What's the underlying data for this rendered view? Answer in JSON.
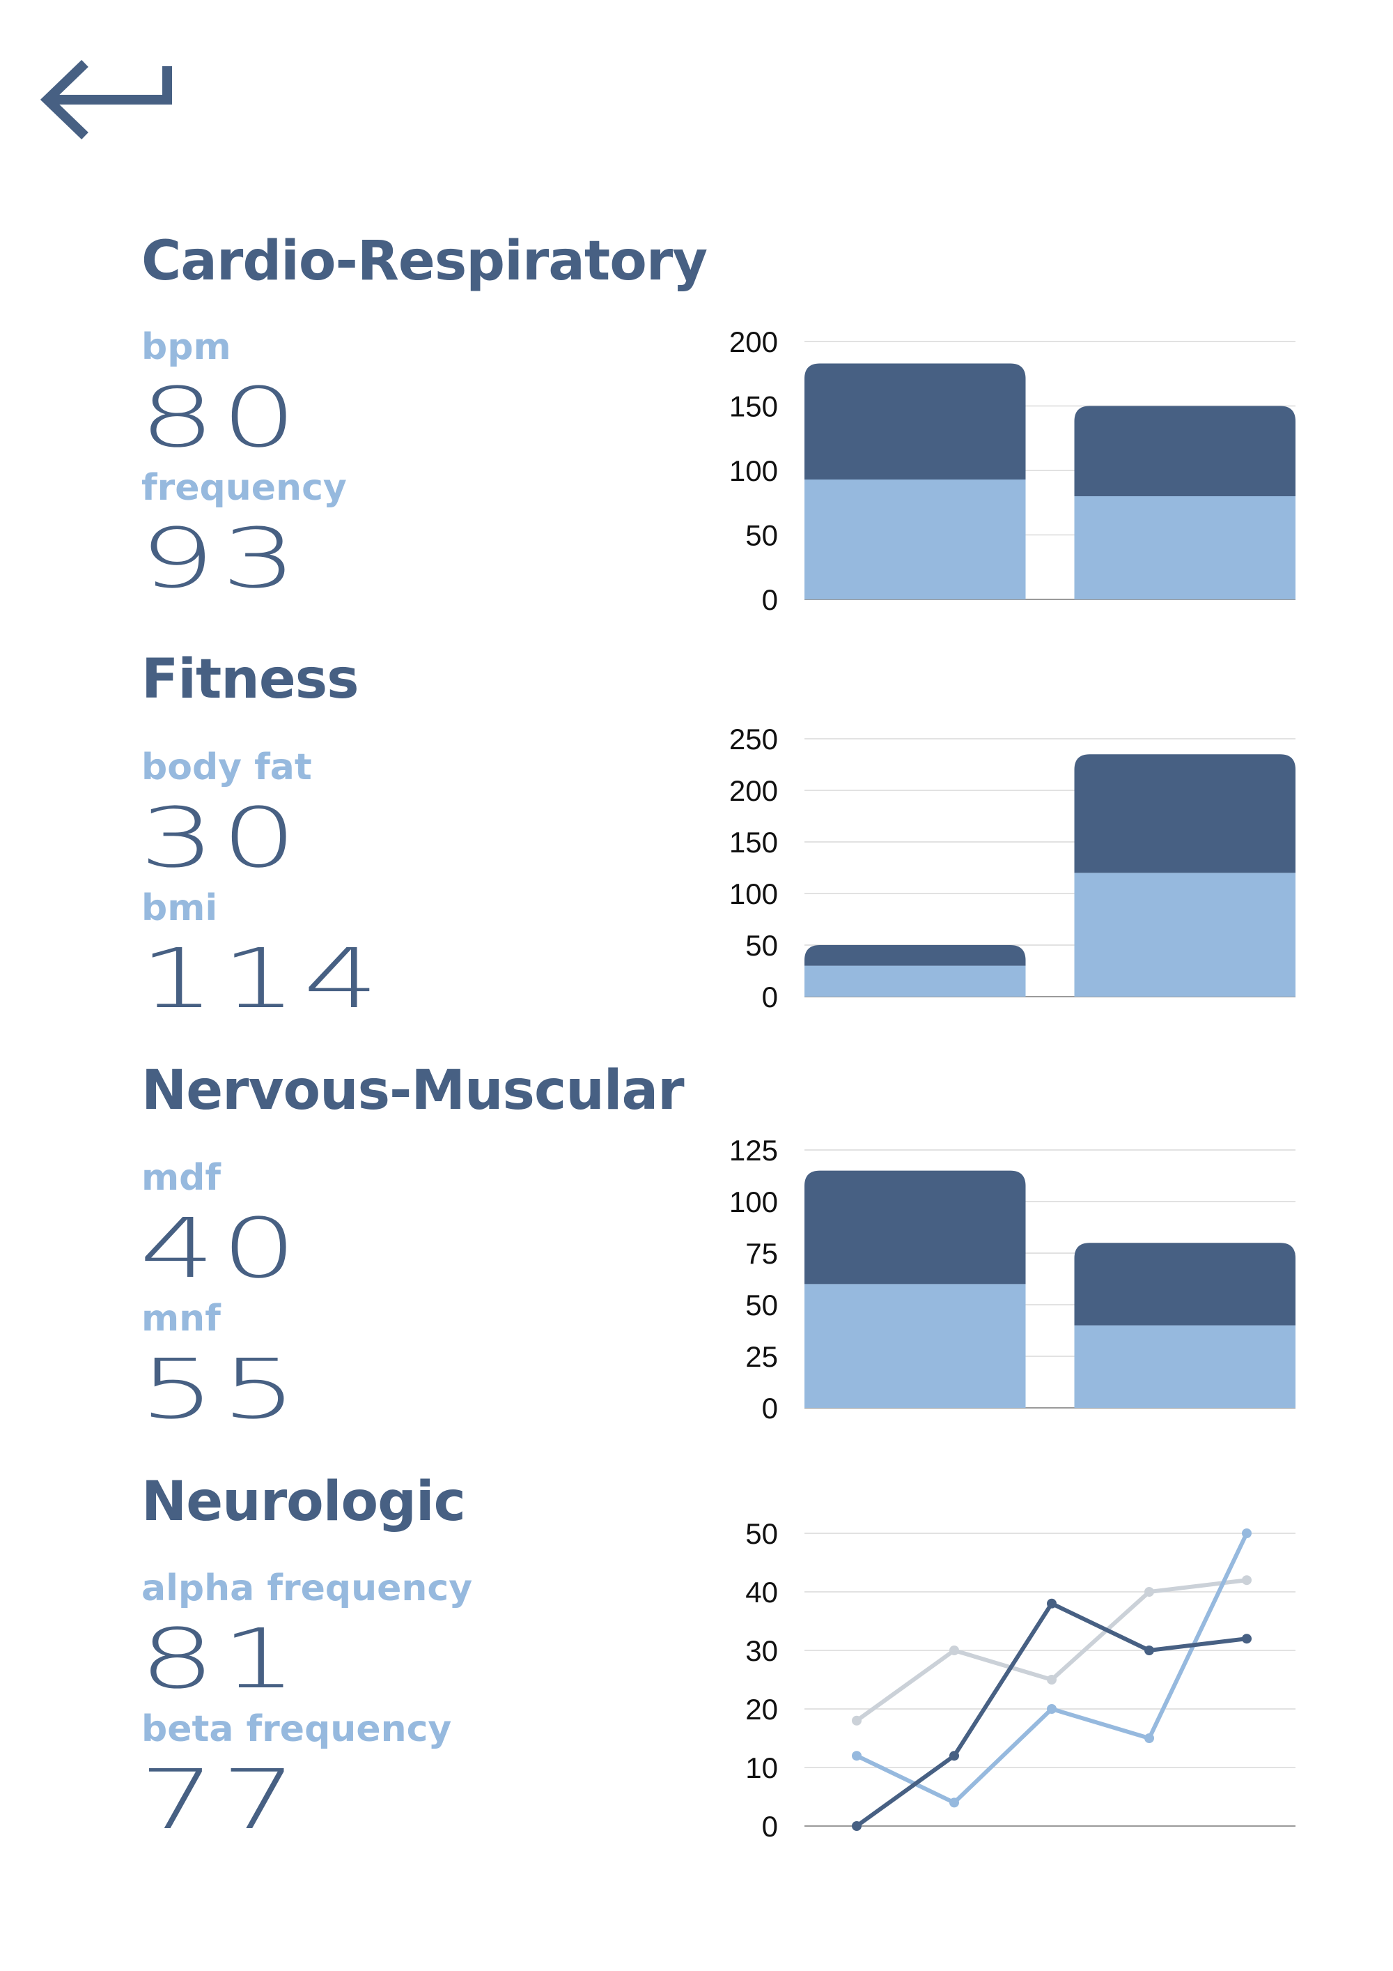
{
  "colors": {
    "dark": "#476083",
    "light": "#96b9de",
    "gray": "#cbd1d8",
    "grid": "#d9d9d9"
  },
  "nav": {
    "back_icon": "return-arrow-icon"
  },
  "sections": [
    {
      "id": "cardio",
      "title": "Cardio-Respiratory",
      "metrics": [
        {
          "label": "bpm",
          "value": "80"
        },
        {
          "label": "frequency",
          "value": "93"
        }
      ]
    },
    {
      "id": "fitness",
      "title": "Fitness",
      "metrics": [
        {
          "label": "body fat",
          "value": "30"
        },
        {
          "label": "bmi",
          "value": "114"
        }
      ]
    },
    {
      "id": "nervous",
      "title": "Nervous-Muscular",
      "metrics": [
        {
          "label": "mdf",
          "value": "40"
        },
        {
          "label": "mnf",
          "value": "55"
        }
      ]
    },
    {
      "id": "neuro",
      "title": "Neurologic",
      "metrics": [
        {
          "label": "alpha frequency",
          "value": "81"
        },
        {
          "label": "beta frequency",
          "value": "77"
        }
      ]
    }
  ],
  "chart_data": [
    {
      "type": "bar",
      "stacked": true,
      "categories": [
        "",
        ""
      ],
      "ylim": [
        0,
        200
      ],
      "yticks": [
        "0",
        "50",
        "100",
        "150",
        "200"
      ],
      "grid": true,
      "series": [
        {
          "values": [
            93,
            80
          ],
          "color": "#96b9de"
        },
        {
          "values": [
            90,
            70
          ],
          "color": "#476083"
        }
      ]
    },
    {
      "type": "bar",
      "stacked": true,
      "categories": [
        "",
        ""
      ],
      "ylim": [
        0,
        250
      ],
      "yticks": [
        "0",
        "50",
        "100",
        "150",
        "200",
        "250"
      ],
      "grid": true,
      "series": [
        {
          "values": [
            30,
            120
          ],
          "color": "#96b9de"
        },
        {
          "values": [
            20,
            115
          ],
          "color": "#476083"
        }
      ]
    },
    {
      "type": "bar",
      "stacked": true,
      "categories": [
        "",
        ""
      ],
      "ylim": [
        0,
        125
      ],
      "yticks": [
        "0",
        "25",
        "50",
        "75",
        "100",
        "125"
      ],
      "grid": true,
      "series": [
        {
          "values": [
            60,
            40
          ],
          "color": "#96b9de"
        },
        {
          "values": [
            55,
            40
          ],
          "color": "#476083"
        }
      ]
    },
    {
      "type": "line",
      "x": [
        1,
        2,
        3,
        4,
        5
      ],
      "ylim": [
        0,
        50
      ],
      "yticks": [
        "0",
        "10",
        "20",
        "30",
        "40",
        "50"
      ],
      "grid": true,
      "series": [
        {
          "values": [
            0,
            12,
            38,
            30,
            32
          ],
          "color": "#476083"
        },
        {
          "values": [
            12,
            4,
            20,
            15,
            50
          ],
          "color": "#96b9de"
        },
        {
          "values": [
            18,
            30,
            25,
            40,
            42
          ],
          "color": "#cbd1d8"
        }
      ]
    }
  ]
}
